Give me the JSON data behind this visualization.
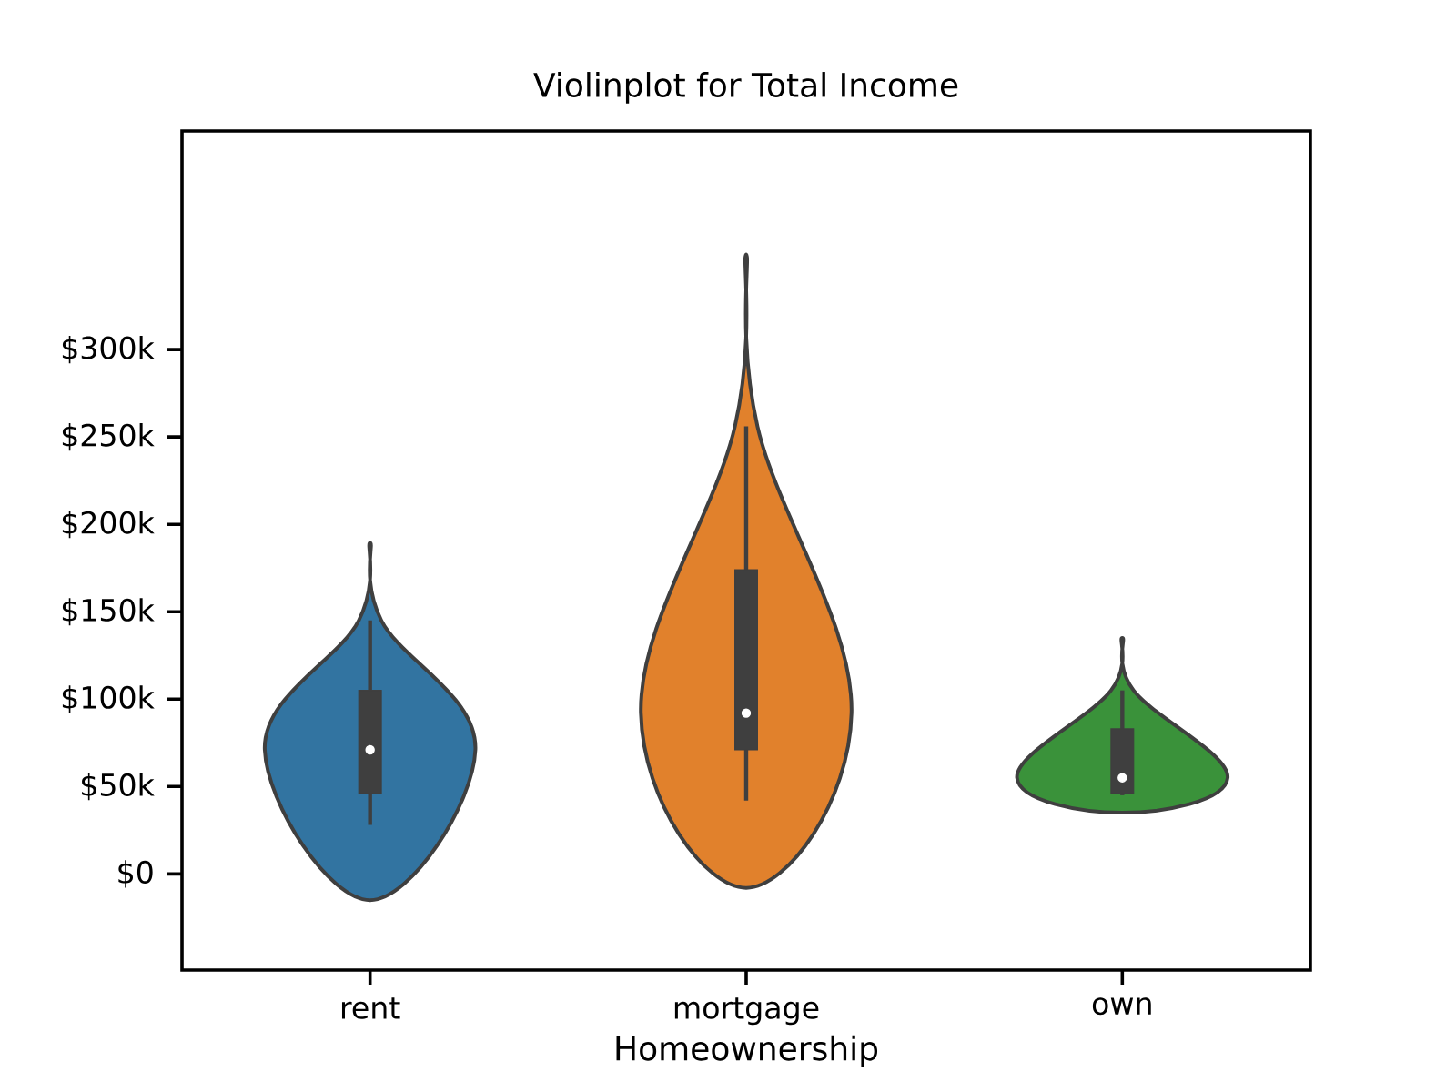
{
  "chart_data": {
    "type": "box",
    "title": "Violinplot for Total Income",
    "xlabel": "Homeownership",
    "categories": [
      "rent",
      "mortgage",
      "own"
    ],
    "boxes": [
      {
        "low": 28,
        "q1": 46,
        "median": 71,
        "q3": 105,
        "high": 145
      },
      {
        "low": 42,
        "q1": 71,
        "median": 92,
        "q3": 174,
        "high": 256
      },
      {
        "low": 45,
        "q1": 46,
        "median": 55,
        "q3": 83,
        "high": 105
      }
    ],
    "ylim": [
      -55,
      425
    ],
    "yticks": [
      {
        "value": 0,
        "label": "$0"
      },
      {
        "value": 50,
        "label": "$50k"
      },
      {
        "value": 100,
        "label": "$100k"
      },
      {
        "value": 150,
        "label": "$150k"
      },
      {
        "value": 200,
        "label": "$200k"
      },
      {
        "value": 250,
        "label": "$250k"
      },
      {
        "value": 300,
        "label": "$300k"
      }
    ]
  }
}
